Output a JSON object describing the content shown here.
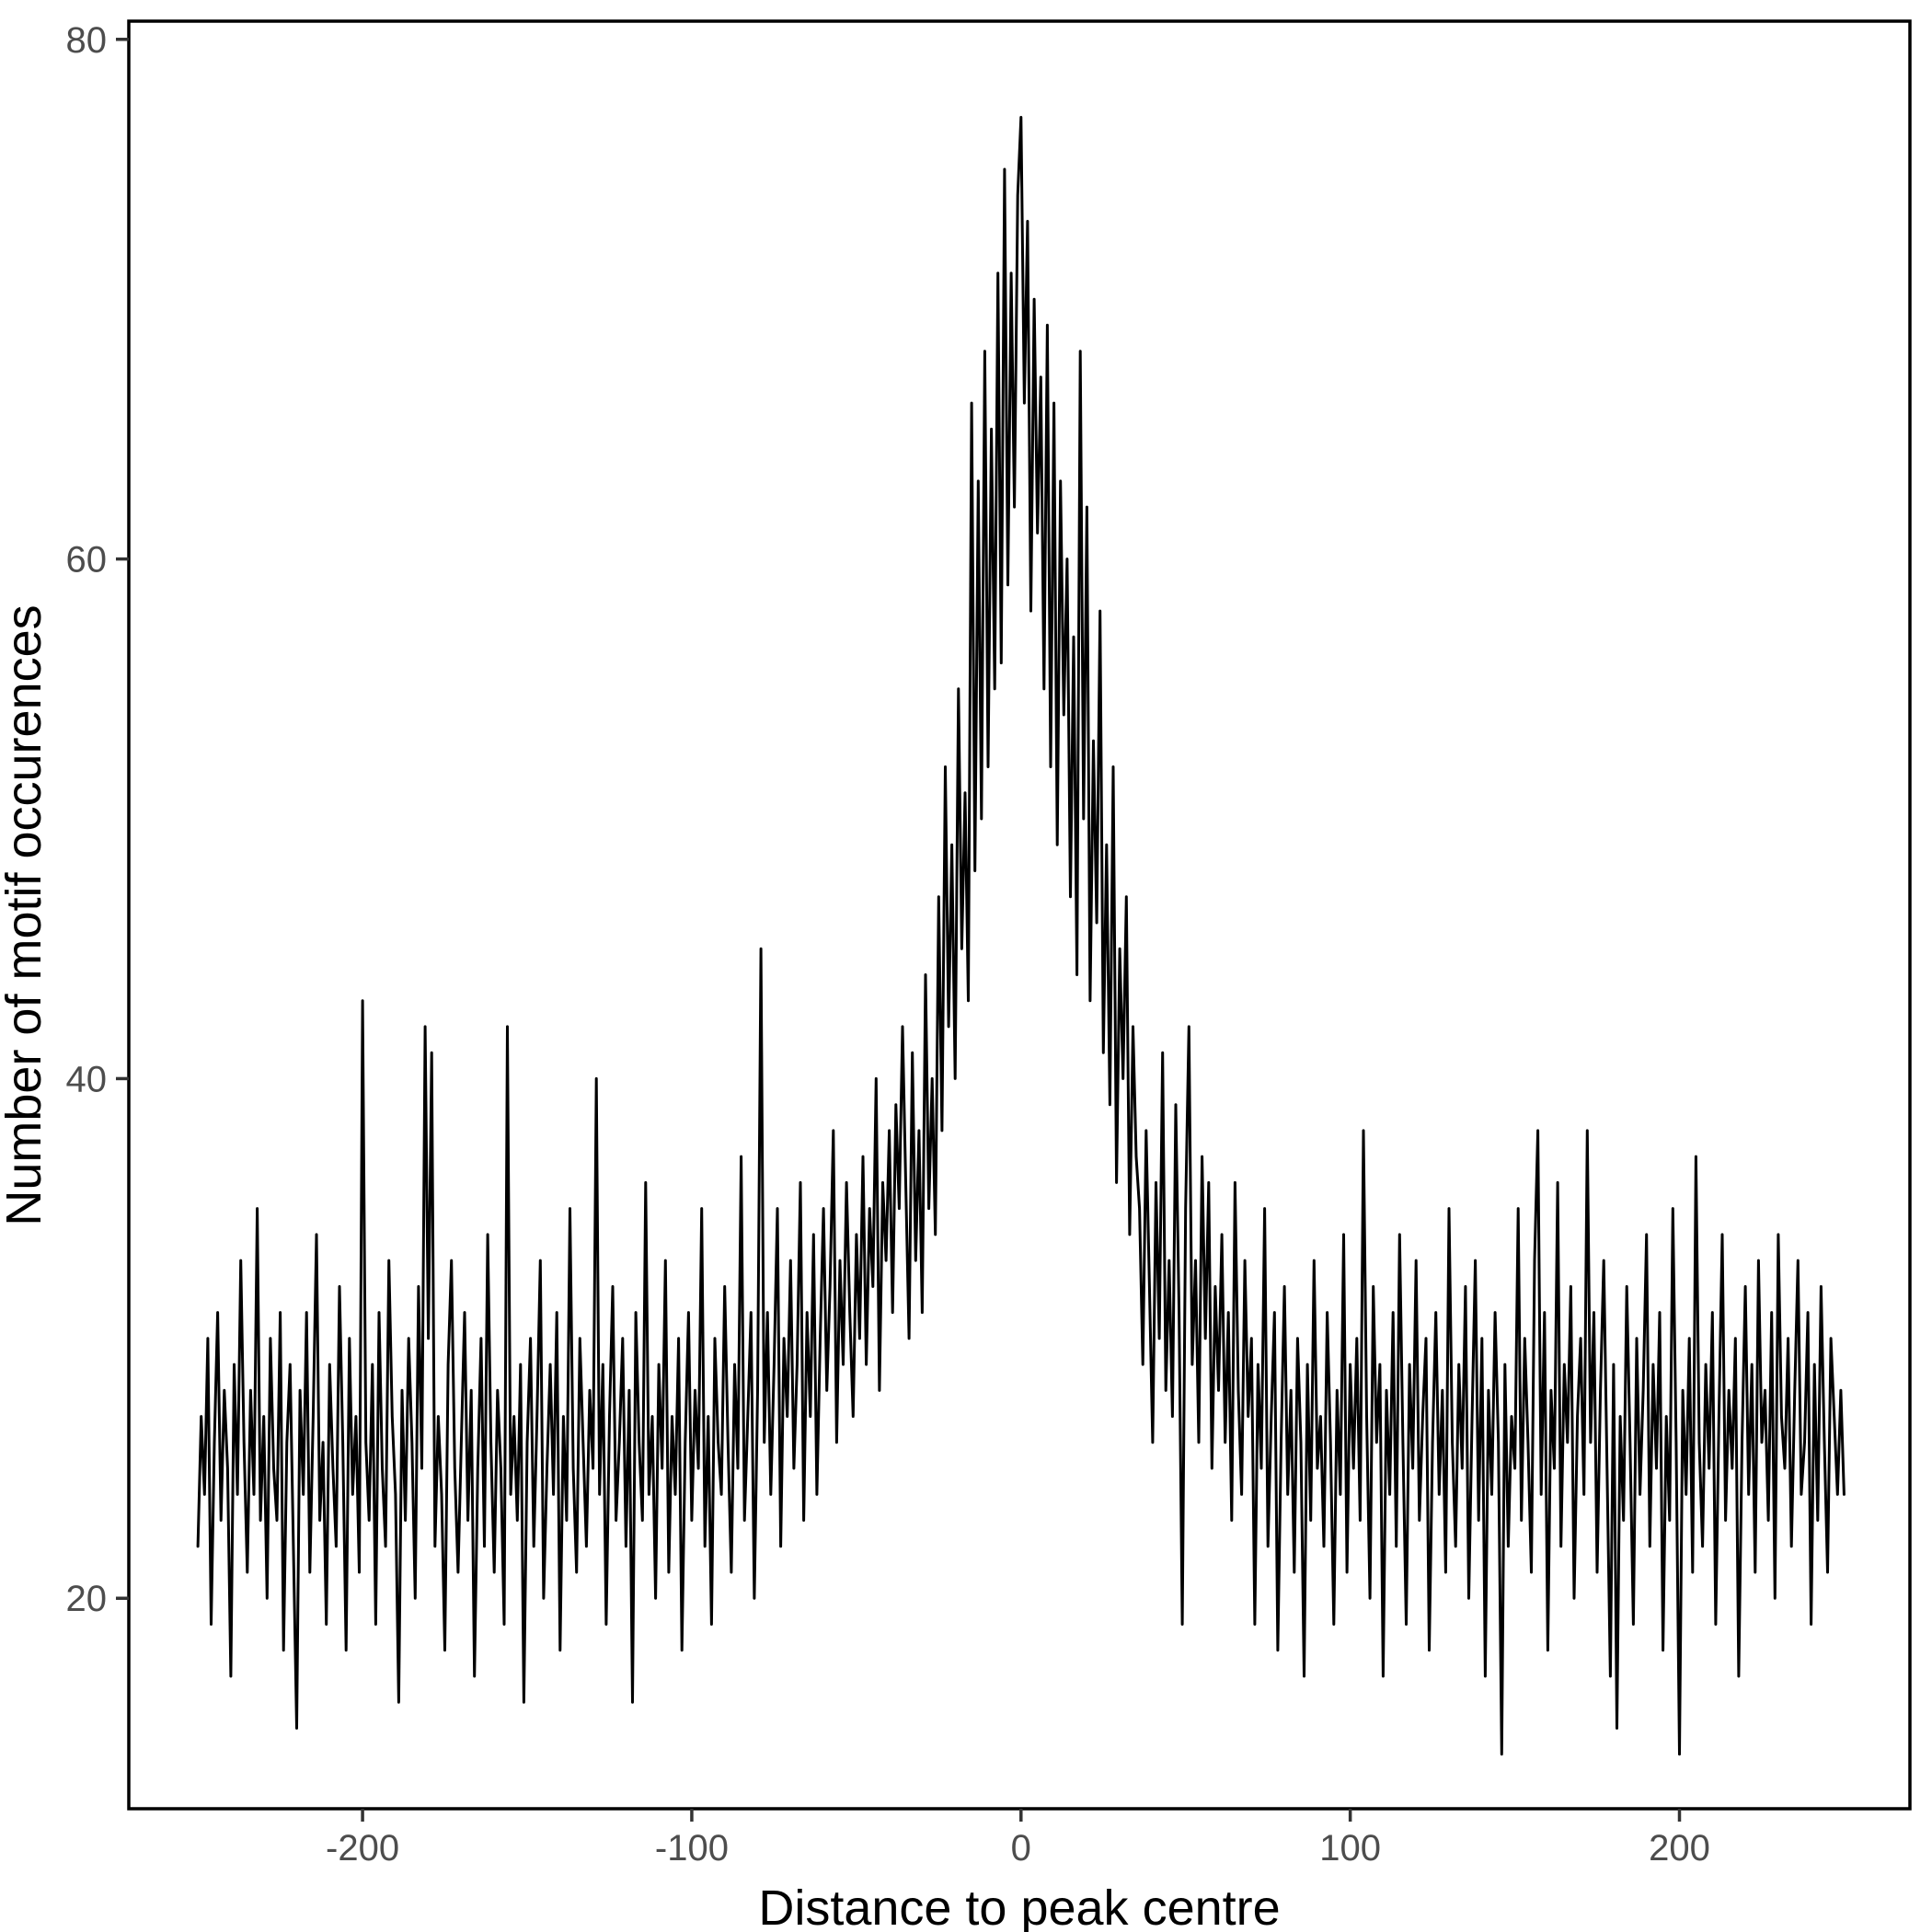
{
  "chart_data": {
    "type": "line",
    "title": "",
    "xlabel": "Distance to peak centre",
    "ylabel": "Number of motif occurences",
    "x_ticks": [
      -200,
      -100,
      0,
      100,
      200
    ],
    "y_ticks": [
      20,
      40,
      60,
      80
    ],
    "xlim": [
      -271,
      270
    ],
    "ylim": [
      11.9,
      80.7
    ],
    "grid": false,
    "legend": "none",
    "x_start": -250,
    "x_step": 1,
    "values": [
      22,
      27,
      24,
      30,
      19,
      26,
      31,
      23,
      28,
      25,
      17,
      29,
      24,
      33,
      26,
      21,
      28,
      24,
      35,
      23,
      27,
      20,
      30,
      25,
      23,
      31,
      18,
      26,
      29,
      22,
      15,
      28,
      24,
      31,
      21,
      27,
      34,
      23,
      26,
      19,
      29,
      25,
      22,
      32,
      26,
      18,
      30,
      24,
      27,
      21,
      43,
      26,
      23,
      29,
      19,
      31,
      25,
      22,
      33,
      27,
      24,
      16,
      28,
      23,
      30,
      26,
      20,
      32,
      25,
      42,
      30,
      41,
      22,
      27,
      24,
      18,
      29,
      33,
      25,
      21,
      26,
      31,
      23,
      28,
      17,
      25,
      30,
      22,
      34,
      26,
      21,
      28,
      25,
      19,
      42,
      24,
      27,
      23,
      29,
      16,
      26,
      30,
      22,
      27,
      33,
      20,
      25,
      29,
      24,
      31,
      18,
      27,
      23,
      35,
      25,
      21,
      30,
      26,
      22,
      28,
      25,
      40,
      24,
      29,
      19,
      27,
      32,
      23,
      26,
      30,
      22,
      28,
      16,
      31,
      26,
      23,
      36,
      24,
      27,
      20,
      29,
      25,
      33,
      21,
      27,
      24,
      30,
      18,
      26,
      31,
      23,
      28,
      25,
      35,
      22,
      27,
      19,
      30,
      26,
      24,
      32,
      26,
      21,
      29,
      25,
      37,
      23,
      27,
      31,
      20,
      28,
      45,
      26,
      31,
      24,
      29,
      35,
      22,
      30,
      27,
      33,
      25,
      29,
      36,
      23,
      31,
      27,
      34,
      24,
      30,
      35,
      28,
      32,
      38,
      26,
      33,
      29,
      36,
      31,
      27,
      34,
      30,
      37,
      29,
      35,
      32,
      40,
      28,
      36,
      33,
      38,
      31,
      39,
      35,
      42,
      36,
      30,
      41,
      33,
      38,
      31,
      44,
      35,
      40,
      34,
      47,
      38,
      52,
      42,
      49,
      40,
      55,
      45,
      51,
      43,
      66,
      48,
      63,
      50,
      68,
      52,
      65,
      55,
      71,
      56,
      75,
      59,
      71,
      62,
      74,
      77,
      66,
      73,
      58,
      70,
      61,
      67,
      55,
      69,
      52,
      66,
      49,
      63,
      54,
      60,
      47,
      57,
      44,
      68,
      50,
      62,
      43,
      53,
      46,
      58,
      41,
      49,
      39,
      52,
      36,
      45,
      40,
      47,
      34,
      42,
      37,
      35,
      29,
      38,
      32,
      26,
      36,
      30,
      41,
      28,
      33,
      27,
      39,
      31,
      19,
      35,
      42,
      29,
      33,
      26,
      37,
      30,
      36,
      25,
      32,
      28,
      34,
      26,
      31,
      23,
      36,
      28,
      24,
      33,
      27,
      30,
      19,
      29,
      25,
      35,
      22,
      27,
      31,
      18,
      26,
      32,
      24,
      28,
      21,
      30,
      26,
      17,
      29,
      23,
      33,
      25,
      27,
      22,
      31,
      26,
      19,
      28,
      24,
      34,
      21,
      29,
      25,
      30,
      23,
      38,
      27,
      20,
      32,
      26,
      29,
      17,
      28,
      24,
      31,
      22,
      34,
      26,
      19,
      29,
      25,
      33,
      23,
      27,
      30,
      18,
      26,
      31,
      24,
      28,
      21,
      35,
      26,
      22,
      29,
      25,
      32,
      20,
      27,
      33,
      23,
      30,
      17,
      28,
      24,
      31,
      26,
      14,
      29,
      22,
      27,
      25,
      35,
      23,
      30,
      26,
      21,
      33,
      38,
      24,
      31,
      18,
      28,
      25,
      36,
      22,
      29,
      26,
      32,
      20,
      27,
      30,
      24,
      38,
      26,
      31,
      21,
      28,
      33,
      25,
      17,
      29,
      15,
      27,
      23,
      32,
      26,
      19,
      30,
      24,
      28,
      34,
      22,
      29,
      25,
      31,
      18,
      27,
      23,
      35,
      26,
      14,
      28,
      24,
      30,
      21,
      37,
      26,
      22,
      29,
      25,
      31,
      19,
      27,
      34,
      23,
      28,
      25,
      30,
      17,
      26,
      32,
      24,
      29,
      21,
      33,
      26,
      28,
      23,
      31,
      20,
      34,
      27,
      25,
      30,
      22,
      28,
      33,
      24,
      26,
      31,
      19,
      29,
      23,
      32,
      26,
      21,
      30,
      27,
      24,
      28,
      24
    ]
  },
  "colors": {
    "line": "#000000",
    "panel_border": "#000000",
    "tick_mark": "#333333",
    "tick_label": "#4d4d4d",
    "axis_title": "#000000",
    "background": "#ffffff"
  }
}
